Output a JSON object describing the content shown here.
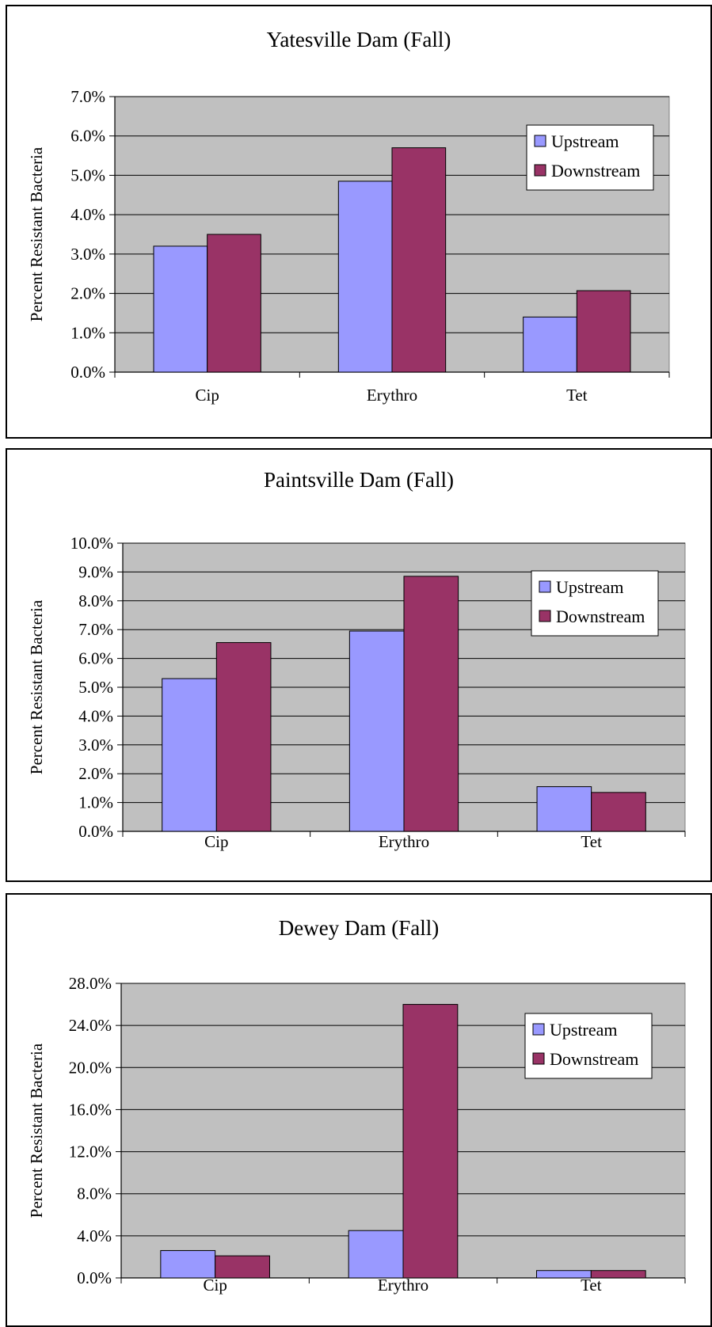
{
  "chart_data": [
    {
      "type": "bar",
      "title": "Yatesville Dam (Fall)",
      "xlabel": "",
      "ylabel": "Percent Resistant Bacteria",
      "categories": [
        "Cip",
        "Erythro",
        "Tet"
      ],
      "series": [
        {
          "name": "Upstream",
          "color": "#9999ff",
          "values": [
            3.2,
            4.85,
            1.4
          ]
        },
        {
          "name": "Downstream",
          "color": "#993366",
          "values": [
            3.5,
            5.7,
            2.07
          ]
        }
      ],
      "ylim": [
        0,
        7
      ],
      "yticks": [
        0,
        1,
        2,
        3,
        4,
        5,
        6,
        7
      ],
      "ytick_labels": [
        "0.0%",
        "1.0%",
        "2.0%",
        "3.0%",
        "4.0%",
        "5.0%",
        "6.0%",
        "7.0%"
      ],
      "grid": true,
      "legend_position": "top-right",
      "plot_background": "#c0c0c0"
    },
    {
      "type": "bar",
      "title": "Paintsville Dam (Fall)",
      "xlabel": "",
      "ylabel": "Percent Resistant Bacteria",
      "categories": [
        "Cip",
        "Erythro",
        "Tet"
      ],
      "series": [
        {
          "name": "Upstream",
          "color": "#9999ff",
          "values": [
            5.3,
            6.95,
            1.55
          ]
        },
        {
          "name": "Downstream",
          "color": "#993366",
          "values": [
            6.55,
            8.85,
            1.35
          ]
        }
      ],
      "ylim": [
        0,
        10
      ],
      "yticks": [
        0,
        1,
        2,
        3,
        4,
        5,
        6,
        7,
        8,
        9,
        10
      ],
      "ytick_labels": [
        "0.0%",
        "1.0%",
        "2.0%",
        "3.0%",
        "4.0%",
        "5.0%",
        "6.0%",
        "7.0%",
        "8.0%",
        "9.0%",
        "10.0%"
      ],
      "grid": true,
      "legend_position": "top-right",
      "plot_background": "#c0c0c0"
    },
    {
      "type": "bar",
      "title": "Dewey Dam (Fall)",
      "xlabel": "",
      "ylabel": "Percent Resistant Bacteria",
      "categories": [
        "Cip",
        "Erythro",
        "Tet"
      ],
      "series": [
        {
          "name": "Upstream",
          "color": "#9999ff",
          "values": [
            2.6,
            4.5,
            0.7
          ]
        },
        {
          "name": "Downstream",
          "color": "#993366",
          "values": [
            2.1,
            26.0,
            0.7
          ]
        }
      ],
      "ylim": [
        0,
        28
      ],
      "yticks": [
        0,
        4,
        8,
        12,
        16,
        20,
        24,
        28
      ],
      "ytick_labels": [
        "0.0%",
        "4.0%",
        "8.0%",
        "12.0%",
        "16.0%",
        "20.0%",
        "24.0%",
        "28.0%"
      ],
      "grid": true,
      "legend_position": "top-right",
      "plot_background": "#c0c0c0"
    }
  ]
}
